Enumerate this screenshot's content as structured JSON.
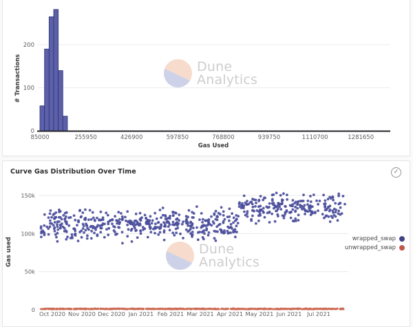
{
  "icons": {
    "check": "✓"
  },
  "watermark": {
    "line1": "Dune",
    "line2": "Analytics"
  },
  "chart_data": [
    {
      "id": "gas-used-histogram",
      "type": "bar",
      "title": "",
      "xlabel": "Gas Used",
      "ylabel": "# Transactions",
      "x_tick_labels": [
        "85000",
        "255950",
        "426900",
        "597850",
        "768800",
        "939750",
        "1110700",
        "1281650"
      ],
      "y_tick_labels": [
        "0",
        "100",
        "200"
      ],
      "ylim": [
        0,
        290
      ],
      "grid": true,
      "bin_start": 85000,
      "bin_width": 15000,
      "values": [
        58,
        190,
        265,
        282,
        140,
        34
      ],
      "bar_color": "#5c60a8",
      "bar_border_color": "#2d3173"
    },
    {
      "id": "curve-gas-distribution-over-time",
      "type": "scatter",
      "title": "Curve Gas Distribution Over Time",
      "xlabel": "",
      "ylabel": "Gas used",
      "x_tick_labels": [
        "Oct 2020",
        "Nov 2020",
        "Dec 2020",
        "Jan 2021",
        "Feb 2021",
        "Mar 2021",
        "Apr 2021",
        "May 2021",
        "Jun 2021",
        "Jul 2021"
      ],
      "y_tick_labels": [
        "0",
        "50k",
        "100k",
        "150k"
      ],
      "ylim": [
        0,
        165000
      ],
      "grid": true,
      "legend_position": "right",
      "series": [
        {
          "name": "wrapped_swap",
          "color": "#4b4f9c",
          "legend_dot_color": "#3f4383",
          "clusters": [
            {
              "month_start": -0.4,
              "month_end": 6.3,
              "count": 470,
              "y_center": 112000,
              "y_half_range": 28000
            },
            {
              "month_start": 6.3,
              "month_end": 9.88,
              "count": 230,
              "y_center": 133500,
              "y_half_range": 26500
            }
          ]
        },
        {
          "name": "unwrapped_swap",
          "color": "#cd6a54",
          "legend_dot_color": "#c05848",
          "clusters": [
            {
              "month_start": -0.4,
              "month_end": 9.88,
              "count": 650,
              "y_center": 1200,
              "y_half_range": 800
            }
          ]
        }
      ]
    }
  ]
}
